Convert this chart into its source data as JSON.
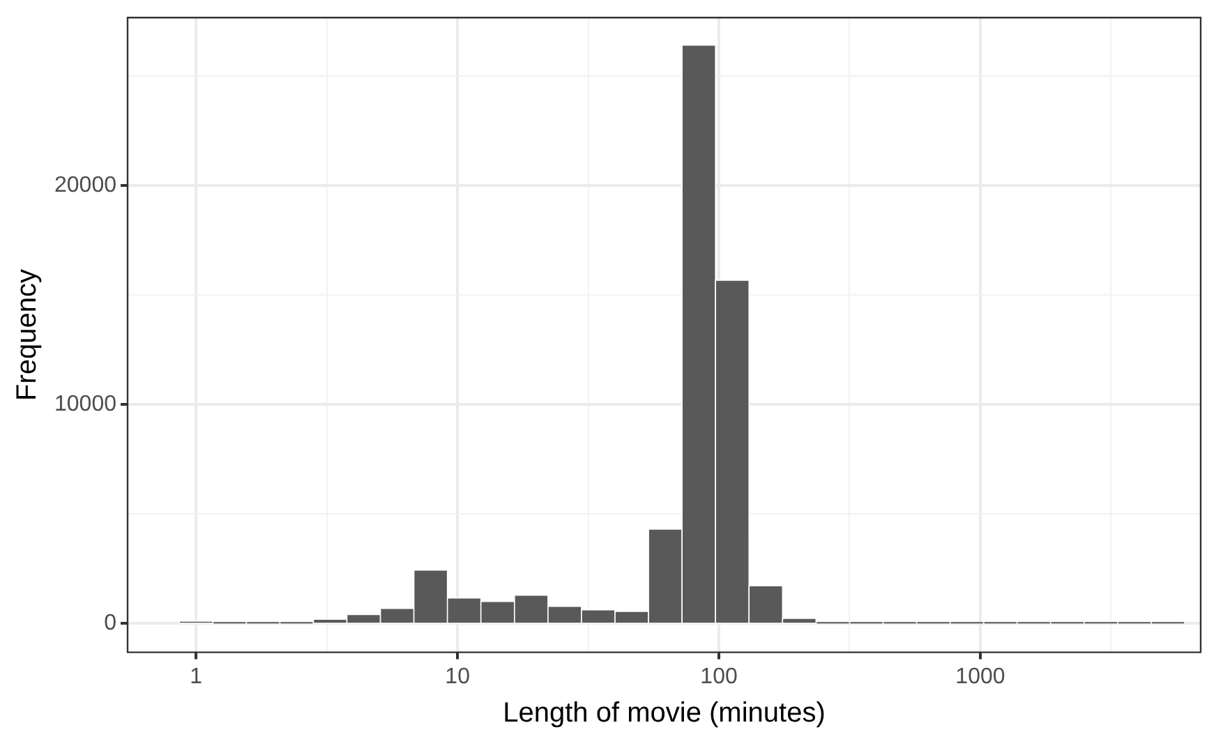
{
  "chart_data": {
    "type": "histogram",
    "xlabel": "Length of movie (minutes)",
    "ylabel": "Frequency",
    "log": "x",
    "color": "#595959",
    "bins": [
      0.863,
      1.159,
      1.557,
      2.091,
      2.81,
      3.775,
      5.072,
      6.813,
      9.152,
      12.29,
      16.52,
      22.19,
      29.81,
      40.05,
      53.8,
      72.27,
      97.07,
      130.4,
      175.2,
      235.3,
      316.2,
      424.8,
      570.6,
      766.5,
      1029.7,
      1383,
      1858,
      2496,
      3353,
      4504,
      6051
    ],
    "values": [
      100,
      0,
      0,
      0,
      190,
      400,
      680,
      2430,
      1160,
      1000,
      1290,
      780,
      620,
      550,
      4300,
      26400,
      15670,
      1720,
      230,
      0,
      0,
      0,
      0,
      0,
      0,
      0,
      0,
      0,
      0,
      0
    ],
    "xlim": [
      0.547,
      6966
    ],
    "xticks": [
      1,
      {
        "value": 3.162,
        "label": null
      },
      10,
      {
        "value": 31.62,
        "label": null
      },
      100,
      {
        "value": 316.2,
        "label": null
      },
      1000,
      {
        "value": 3162,
        "label": null
      }
    ],
    "ylim": [
      -1320,
      27660
    ],
    "yticks": [
      0,
      {
        "value": 5000,
        "label": null
      },
      10000,
      {
        "value": 15000,
        "label": null
      },
      20000,
      {
        "value": 25000,
        "label": null
      }
    ],
    "grid": true
  }
}
